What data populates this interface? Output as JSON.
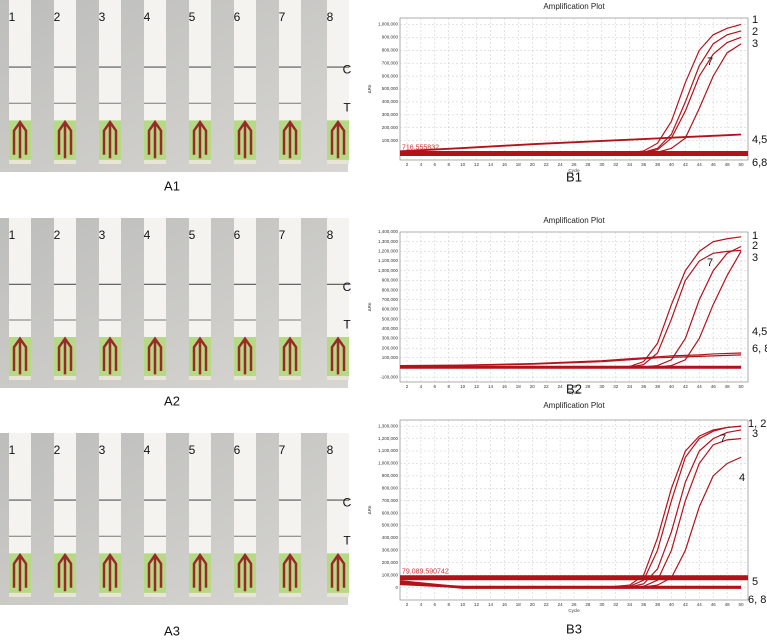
{
  "photos": [
    {
      "label": "A1",
      "lanes": [
        "1",
        "2",
        "3",
        "4",
        "5",
        "6",
        "7",
        "8"
      ],
      "control": "C",
      "test": "T"
    },
    {
      "label": "A2",
      "lanes": [
        "1",
        "2",
        "3",
        "4",
        "5",
        "6",
        "7",
        "8"
      ],
      "control": "C",
      "test": "T"
    },
    {
      "label": "A3",
      "lanes": [
        "1",
        "2",
        "3",
        "4",
        "5",
        "6",
        "7",
        "8"
      ],
      "control": "C",
      "test": "T"
    }
  ],
  "chart_data": [
    {
      "type": "line",
      "title": "Amplification Plot",
      "panel": "B1",
      "xlabel": "Cycle",
      "ylabel": "ΔRn",
      "grid": true,
      "x": [
        1,
        10,
        20,
        30,
        34,
        36,
        38,
        40,
        42,
        44,
        46,
        48,
        50
      ],
      "xlim": [
        1,
        51
      ],
      "xticks": [
        2,
        4,
        6,
        8,
        10,
        12,
        14,
        16,
        18,
        20,
        22,
        24,
        26,
        28,
        30,
        32,
        34,
        36,
        38,
        40,
        42,
        44,
        46,
        48,
        50
      ],
      "ylim": [
        -50000,
        1050000
      ],
      "yticks": [
        {
          "value": 100000,
          "label": "100,000"
        },
        {
          "value": 200000,
          "label": "200,000"
        },
        {
          "value": 300000,
          "label": "300,000"
        },
        {
          "value": 400000,
          "label": "400,000"
        },
        {
          "value": 500000,
          "label": "500,000"
        },
        {
          "value": 600000,
          "label": "600,000"
        },
        {
          "value": 700000,
          "label": "700,000"
        },
        {
          "value": 800000,
          "label": "800,000"
        },
        {
          "value": 900000,
          "label": "900,000"
        },
        {
          "value": 1000000,
          "label": "1,000,000"
        }
      ],
      "threshold": {
        "value": 716.555832,
        "label": "716.555832"
      },
      "series": [
        {
          "color": "#b3121b",
          "values": [
            0,
            0,
            0,
            0,
            5000,
            20000,
            80000,
            250000,
            550000,
            800000,
            920000,
            970000,
            1000000
          ]
        },
        {
          "color": "#b3121b",
          "values": [
            0,
            0,
            0,
            0,
            0,
            10000,
            40000,
            150000,
            400000,
            680000,
            850000,
            920000,
            950000
          ]
        },
        {
          "color": "#b3121b",
          "values": [
            0,
            0,
            0,
            0,
            0,
            0,
            10000,
            40000,
            120000,
            350000,
            600000,
            780000,
            850000
          ]
        },
        {
          "color": "#b3121b",
          "values": [
            20000,
            45000,
            75000,
            100000,
            110000,
            115000,
            120000,
            125000,
            130000,
            135000,
            140000,
            145000,
            150000
          ]
        },
        {
          "color": "#b3121b",
          "values": [
            15000,
            40000,
            70000,
            95000,
            105000,
            110000,
            115000,
            120000,
            125000,
            130000,
            135000,
            140000,
            145000
          ]
        },
        {
          "color": "#b3121b",
          "values": [
            0,
            0,
            0,
            0,
            0,
            0,
            0,
            0,
            0,
            0,
            0,
            0,
            0
          ]
        },
        {
          "color": "#b3121b",
          "values": [
            0,
            0,
            0,
            0,
            0,
            5000,
            30000,
            120000,
            330000,
            600000,
            770000,
            860000,
            900000
          ]
        },
        {
          "color": "#b3121b",
          "values": [
            5000,
            5000,
            5000,
            5000,
            5000,
            5000,
            5000,
            5000,
            5000,
            5000,
            5000,
            5000,
            5000
          ]
        }
      ],
      "annotations": [
        "1",
        "2",
        "3",
        "7",
        "4,5",
        "6,8"
      ]
    },
    {
      "type": "line",
      "title": "Amplification Plot",
      "panel": "B2",
      "xlabel": "Cycle",
      "ylabel": "ΔRn",
      "grid": true,
      "x": [
        1,
        10,
        20,
        30,
        34,
        36,
        38,
        40,
        42,
        44,
        46,
        48,
        50
      ],
      "xlim": [
        1,
        51
      ],
      "xticks": [
        2,
        4,
        6,
        8,
        10,
        12,
        14,
        16,
        18,
        20,
        22,
        24,
        26,
        28,
        30,
        32,
        34,
        36,
        38,
        40,
        42,
        44,
        46,
        48,
        50
      ],
      "ylim": [
        -150000,
        1400000
      ],
      "yticks": [
        {
          "value": -100000,
          "label": "-100,000"
        },
        {
          "value": 100000,
          "label": "100,000"
        },
        {
          "value": 200000,
          "label": "200,000"
        },
        {
          "value": 300000,
          "label": "300,000"
        },
        {
          "value": 400000,
          "label": "400,000"
        },
        {
          "value": 500000,
          "label": "500,000"
        },
        {
          "value": 600000,
          "label": "600,000"
        },
        {
          "value": 700000,
          "label": "700,000"
        },
        {
          "value": 800000,
          "label": "800,000"
        },
        {
          "value": 900000,
          "label": "900,000"
        },
        {
          "value": 1000000,
          "label": "1,000,000"
        },
        {
          "value": 1100000,
          "label": "1,100,000"
        },
        {
          "value": 1200000,
          "label": "1,200,000"
        },
        {
          "value": 1300000,
          "label": "1,300,000"
        },
        {
          "value": 1400000,
          "label": "1,400,000"
        }
      ],
      "series": [
        {
          "color": "#b3121b",
          "values": [
            0,
            0,
            0,
            0,
            10000,
            60000,
            250000,
            650000,
            1000000,
            1200000,
            1300000,
            1330000,
            1350000
          ]
        },
        {
          "color": "#b3121b",
          "values": [
            0,
            0,
            0,
            0,
            0,
            5000,
            20000,
            80000,
            300000,
            700000,
            1000000,
            1180000,
            1250000
          ]
        },
        {
          "color": "#b3121b",
          "values": [
            0,
            0,
            0,
            0,
            0,
            0,
            5000,
            20000,
            80000,
            300000,
            650000,
            950000,
            1200000
          ]
        },
        {
          "color": "#b3121b",
          "values": [
            20000,
            25000,
            40000,
            70000,
            90000,
            100000,
            110000,
            120000,
            125000,
            130000,
            140000,
            145000,
            150000
          ]
        },
        {
          "color": "#b3121b",
          "values": [
            15000,
            20000,
            35000,
            60000,
            80000,
            90000,
            100000,
            105000,
            110000,
            115000,
            120000,
            125000,
            130000
          ]
        },
        {
          "color": "#b3121b",
          "values": [
            0,
            0,
            0,
            0,
            0,
            0,
            0,
            0,
            0,
            0,
            0,
            0,
            0
          ]
        },
        {
          "color": "#b3121b",
          "values": [
            0,
            0,
            0,
            0,
            5000,
            30000,
            150000,
            500000,
            900000,
            1100000,
            1180000,
            1200000,
            1210000
          ]
        },
        {
          "color": "#b3121b",
          "values": [
            5000,
            5000,
            5000,
            5000,
            5000,
            5000,
            5000,
            5000,
            5000,
            5000,
            5000,
            5000,
            5000
          ]
        }
      ],
      "annotations": [
        "1",
        "2",
        "3",
        "7",
        "4,5",
        "6, 8"
      ]
    },
    {
      "type": "line",
      "title": "Amplification Plot",
      "panel": "B3",
      "xlabel": "Cycle",
      "ylabel": "ΔRn",
      "grid": true,
      "x": [
        1,
        10,
        20,
        30,
        34,
        36,
        38,
        40,
        42,
        44,
        46,
        48,
        50
      ],
      "xlim": [
        1,
        51
      ],
      "xticks": [
        2,
        4,
        6,
        8,
        10,
        12,
        14,
        16,
        18,
        20,
        22,
        24,
        26,
        28,
        30,
        32,
        34,
        36,
        38,
        40,
        42,
        44,
        46,
        48,
        50
      ],
      "ylim": [
        -100000,
        1350000
      ],
      "yticks": [
        0,
        {
          "value": 100000,
          "label": "100,000"
        },
        {
          "value": 200000,
          "label": "200,000"
        },
        {
          "value": 300000,
          "label": "300,000"
        },
        {
          "value": 400000,
          "label": "400,000"
        },
        {
          "value": 500000,
          "label": "500,000"
        },
        {
          "value": 600000,
          "label": "600,000"
        },
        {
          "value": 700000,
          "label": "700,000"
        },
        {
          "value": 800000,
          "label": "800,000"
        },
        {
          "value": 900000,
          "label": "900,000"
        },
        {
          "value": 1000000,
          "label": "1,000,000"
        },
        {
          "value": 1100000,
          "label": "1,100,000"
        },
        {
          "value": 1200000,
          "label": "1,200,000"
        },
        {
          "value": 1300000,
          "label": "1,300,000"
        }
      ],
      "threshold": {
        "value": 79089.590742,
        "label": "79,089.590742"
      },
      "series": [
        {
          "color": "#b3121b",
          "values": [
            50000,
            0,
            0,
            0,
            20000,
            100000,
            400000,
            800000,
            1100000,
            1220000,
            1270000,
            1290000,
            1300000
          ]
        },
        {
          "color": "#b3121b",
          "values": [
            40000,
            0,
            0,
            0,
            10000,
            60000,
            300000,
            700000,
            1050000,
            1200000,
            1260000,
            1290000,
            1300000
          ]
        },
        {
          "color": "#b3121b",
          "values": [
            45000,
            0,
            0,
            0,
            5000,
            30000,
            150000,
            450000,
            850000,
            1100000,
            1200000,
            1250000,
            1270000
          ]
        },
        {
          "color": "#b3121b",
          "values": [
            30000,
            0,
            0,
            0,
            0,
            5000,
            20000,
            80000,
            300000,
            650000,
            900000,
            1000000,
            1050000
          ]
        },
        {
          "color": "#b3121b",
          "values": [
            85000,
            85000,
            85000,
            85000,
            85000,
            85000,
            85000,
            85000,
            85000,
            85000,
            85000,
            85000,
            85000
          ]
        },
        {
          "color": "#b3121b",
          "values": [
            50000,
            0,
            0,
            0,
            0,
            0,
            0,
            0,
            0,
            0,
            0,
            0,
            0
          ]
        },
        {
          "color": "#b3121b",
          "values": [
            40000,
            0,
            0,
            0,
            0,
            10000,
            60000,
            300000,
            700000,
            1000000,
            1150000,
            1190000,
            1200000
          ]
        },
        {
          "color": "#b3121b",
          "values": [
            30000,
            5000,
            5000,
            5000,
            5000,
            5000,
            5000,
            5000,
            5000,
            5000,
            5000,
            5000,
            5000
          ]
        }
      ],
      "annotations": [
        "1, 2",
        "3",
        "7",
        "4",
        "5",
        "6, 8"
      ]
    }
  ]
}
